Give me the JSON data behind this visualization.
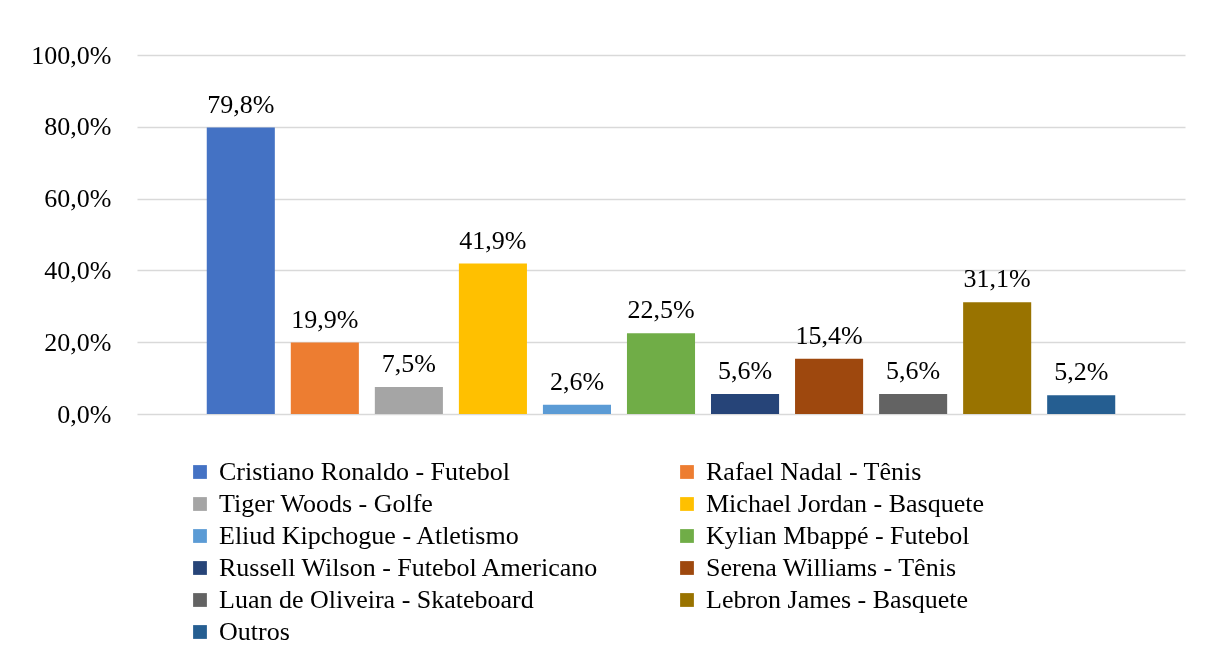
{
  "chart_data": {
    "type": "bar",
    "categories": [
      null
    ],
    "series": [
      {
        "name": "Cristiano Ronaldo - Futebol",
        "color": "#4472c4",
        "values": [
          79.8
        ],
        "value_labels": [
          "79,8%"
        ]
      },
      {
        "name": "Rafael Nadal - Tênis",
        "color": "#ed7d31",
        "values": [
          19.9
        ],
        "value_labels": [
          "19,9%"
        ]
      },
      {
        "name": "Tiger Woods - Golfe",
        "color": "#a5a5a5",
        "values": [
          7.5
        ],
        "value_labels": [
          "7,5%"
        ]
      },
      {
        "name": "Michael Jordan - Basquete",
        "color": "#ffc000",
        "values": [
          41.9
        ],
        "value_labels": [
          "41,9%"
        ]
      },
      {
        "name": "Eliud Kipchogue - Atletismo",
        "color": "#5b9bd5",
        "values": [
          2.6
        ],
        "value_labels": [
          "2,6%"
        ]
      },
      {
        "name": "Kylian Mbappé - Futebol",
        "color": "#70ad47",
        "values": [
          22.5
        ],
        "value_labels": [
          "22,5%"
        ]
      },
      {
        "name": "Russell Wilson - Futebol Americano",
        "color": "#264478",
        "values": [
          5.6
        ],
        "value_labels": [
          "5,6%"
        ]
      },
      {
        "name": "Serena Williams - Tênis",
        "color": "#9e480e",
        "values": [
          15.4
        ],
        "value_labels": [
          "15,4%"
        ]
      },
      {
        "name": "Luan de Oliveira - Skateboard",
        "color": "#636363",
        "values": [
          5.6
        ],
        "value_labels": [
          "5,6%"
        ]
      },
      {
        "name": "Lebron James - Basquete",
        "color": "#997300",
        "values": [
          31.1
        ],
        "value_labels": [
          "31,1%"
        ]
      },
      {
        "name": "Outros",
        "color": "#255e91",
        "values": [
          5.2
        ],
        "value_labels": [
          "5,2%"
        ]
      }
    ],
    "ylim": [
      0,
      100
    ],
    "yticks": [
      {
        "value": 0,
        "label": "0,0%"
      },
      {
        "value": 20,
        "label": "20,0%"
      },
      {
        "value": 40,
        "label": "40,0%"
      },
      {
        "value": 60,
        "label": "60,0%"
      },
      {
        "value": 80,
        "label": "80,0%"
      },
      {
        "value": 100,
        "label": "100,0%"
      }
    ],
    "grid": "y",
    "legend": "bottom",
    "tick_labels": "y"
  }
}
